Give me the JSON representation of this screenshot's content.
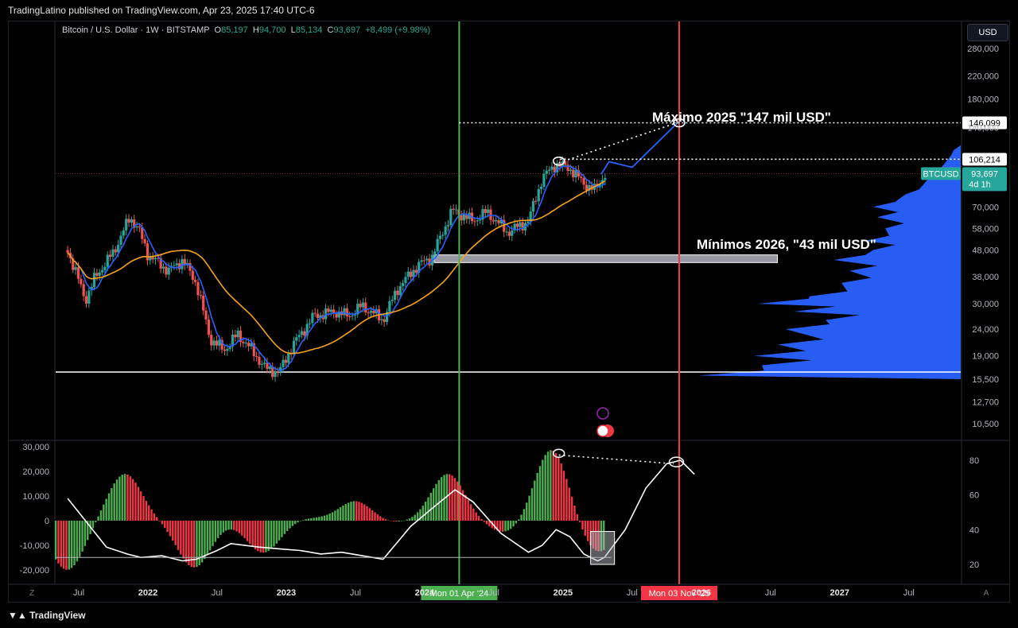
{
  "header": {
    "published": "TradingLatino published on TradingView.com, Apr 23, 2025 17:40 UTC-6"
  },
  "footer": {
    "brand": "TradingView"
  },
  "legend": {
    "symbol": "Bitcoin / U.S. Dollar · 1W · BITSTAMP",
    "o_label": "O",
    "o_value": "85,197",
    "h_label": "H",
    "h_value": "94,700",
    "l_label": "L",
    "l_value": "85,134",
    "c_label": "C",
    "c_value": "93,697",
    "change": "+8,499 (+9.98%)"
  },
  "currency_button": "USD",
  "colors": {
    "up": "#26a69a",
    "down": "#ef5350",
    "blue": "#2962ff",
    "orange": "#f7a21b",
    "vline_green": "#4caf50",
    "vline_red": "#f23645"
  },
  "chart_data": [
    {
      "type": "candlestick",
      "title": "Bitcoin / U.S. Dollar · 1W · BITSTAMP",
      "y_scale": "log",
      "y_ticks": [
        "280,000",
        "220,000",
        "180,000",
        "140,000",
        "70,000",
        "58,000",
        "48,000",
        "38,000",
        "30,000",
        "24,000",
        "19,000",
        "15,500",
        "12,700",
        "10,500"
      ],
      "x_ticks": [
        "Jul",
        "2022",
        "Jul",
        "2023",
        "Jul",
        "2024",
        "Jul",
        "2025",
        "Jul",
        "2026",
        "Jul",
        "2027",
        "Jul"
      ],
      "price_markers": [
        {
          "label": "146,099",
          "value": 146099
        },
        {
          "label": "106,214",
          "value": 106214
        },
        {
          "label": "BTCUSD",
          "value": 93697,
          "price": "93,697",
          "countdown": "4d 1h"
        }
      ],
      "annotations": [
        {
          "text": "Máximo 2025 \"147 mil USD\""
        },
        {
          "text": "Mínimos 2026, \"43 mil USD\""
        }
      ],
      "support_level": 16500,
      "zone": [
        43000,
        46000
      ],
      "projection": [
        {
          "x": "2025-04",
          "y": 93000
        },
        {
          "x": "2025-05",
          "y": 104000
        },
        {
          "x": "2025-07",
          "y": 99000
        },
        {
          "x": "2025-11",
          "y": 147000
        }
      ],
      "vertical_lines": [
        {
          "date_label": "Mon 01 Apr '24",
          "color": "green"
        },
        {
          "date_label": "Mon 03 Nov '25",
          "color": "red"
        }
      ],
      "moving_averages": [
        "fast-blue",
        "slow-orange"
      ],
      "volume_profile": "right-side"
    },
    {
      "type": "histogram+line",
      "left_ticks": [
        "30,000",
        "20,000",
        "10,000",
        "0",
        "-10,000",
        "-20,000"
      ],
      "right_ticks": [
        "80",
        "60",
        "40",
        "20"
      ],
      "histogram_waves": [
        {
          "x": "2021-06",
          "peak": -20000
        },
        {
          "x": "2021-11",
          "peak": 19000
        },
        {
          "x": "2022-05",
          "peak": -19000
        },
        {
          "x": "2022-11",
          "peak": -13000
        },
        {
          "x": "2023-03",
          "peak": 1000
        },
        {
          "x": "2023-07",
          "peak": 8000
        },
        {
          "x": "2023-10",
          "peak": -1000
        },
        {
          "x": "2024-03",
          "peak": 19000
        },
        {
          "x": "2024-08",
          "peak": -5000
        },
        {
          "x": "2024-12",
          "peak": 29000
        },
        {
          "x": "2025-04",
          "peak": -13000
        }
      ],
      "oscillator_line_range": [
        20,
        80
      ]
    }
  ]
}
